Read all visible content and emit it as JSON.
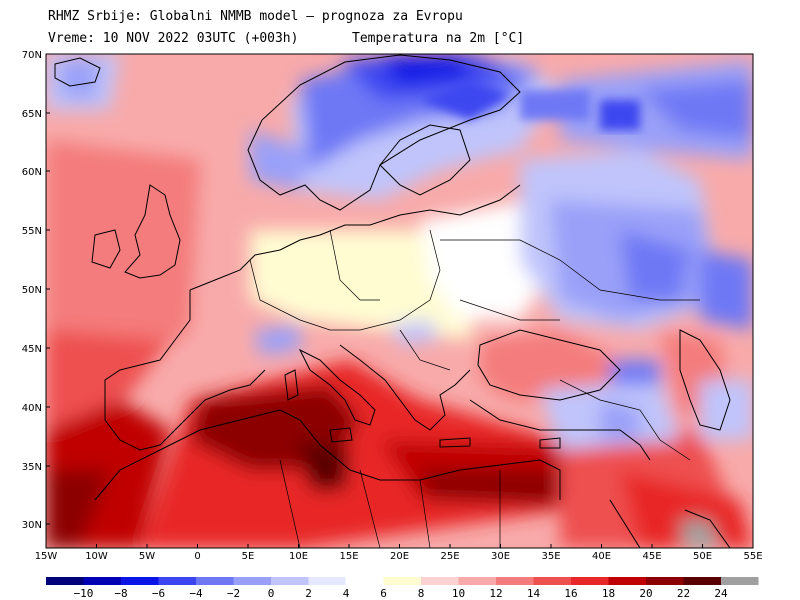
{
  "header": {
    "line1": "RHMZ Srbije: Globalni NMMB model — prognoza za Evropu",
    "line2_left": "Vreme: 10 NOV 2022 03UTC (+003h)",
    "line2_right": "Temperatura na 2m [°C]"
  },
  "map": {
    "lon_ticks": [
      "15W",
      "10W",
      "5W",
      "0",
      "5E",
      "10E",
      "15E",
      "20E",
      "25E",
      "30E",
      "35E",
      "40E",
      "45E",
      "50E",
      "55E"
    ],
    "lat_ticks": [
      "70N",
      "65N",
      "60N",
      "55N",
      "50N",
      "45N",
      "40N",
      "35N",
      "30N"
    ]
  },
  "legend": {
    "labels": [
      "-10",
      "-8",
      "-6",
      "-4",
      "-2",
      "0",
      "2",
      "4",
      "6",
      "8",
      "10",
      "12",
      "14",
      "16",
      "18",
      "20",
      "22",
      "24"
    ],
    "colors": [
      "#00007a",
      "#0000b4",
      "#0a14e6",
      "#3c46f0",
      "#6e78f5",
      "#9aa0f8",
      "#c0c4fb",
      "#e6e8ff",
      "#ffffff",
      "#fffcd2",
      "#fcd2d2",
      "#f8aaaa",
      "#f47c7c",
      "#ee5050",
      "#e82828",
      "#c00000",
      "#8c0000",
      "#5a0000",
      "#a0a0a0"
    ]
  }
}
